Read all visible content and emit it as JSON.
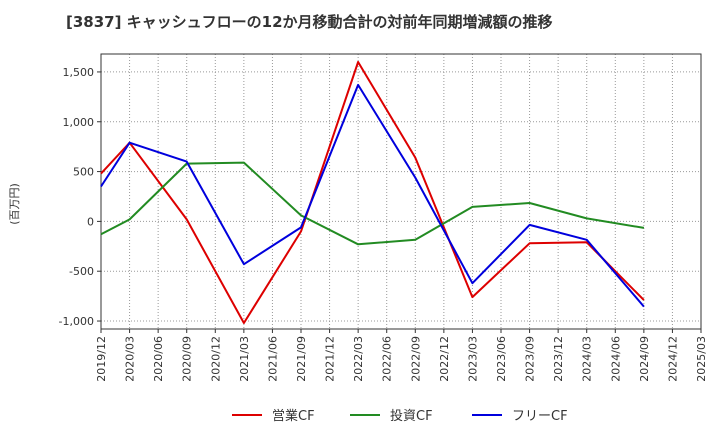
{
  "chart_data": {
    "type": "line",
    "title": "[3837]  キャッシュフローの12か月移動合計の対前年同期増減額の推移",
    "ylabel": "(百万円)",
    "xlabel": "",
    "categories": [
      "2019/12",
      "2020/03",
      "2020/06",
      "2020/09",
      "2020/12",
      "2021/03",
      "2021/06",
      "2021/09",
      "2021/12",
      "2022/03",
      "2022/06",
      "2022/09",
      "2022/12",
      "2023/03",
      "2023/06",
      "2023/09",
      "2023/12",
      "2024/03",
      "2024/06",
      "2024/09",
      "2024/12",
      "2025/03"
    ],
    "y_ticks": [
      "1,500",
      "1,000",
      "500",
      "0",
      "-500",
      "-1,000"
    ],
    "y_tick_values": [
      1500,
      1000,
      500,
      0,
      -500,
      -1000
    ],
    "ylim": [
      -1080,
      1680
    ],
    "grid": true,
    "legend_position": "bottom",
    "series": [
      {
        "name": "営業CF",
        "color": "#dd0000",
        "values": [
          480,
          790,
          null,
          20,
          null,
          -1020,
          null,
          -100,
          null,
          1600,
          null,
          640,
          null,
          -760,
          null,
          -220,
          null,
          -210,
          null,
          -790,
          null,
          null
        ]
      },
      {
        "name": "投資CF",
        "color": "#228B22",
        "values": [
          -130,
          20,
          null,
          580,
          null,
          590,
          null,
          60,
          null,
          -230,
          null,
          -185,
          null,
          145,
          null,
          185,
          null,
          30,
          null,
          -65,
          null,
          null
        ]
      },
      {
        "name": "フリーCF",
        "color": "#0000dd",
        "values": [
          350,
          790,
          null,
          600,
          null,
          -430,
          null,
          -60,
          null,
          1370,
          null,
          440,
          null,
          -620,
          null,
          -35,
          null,
          -185,
          null,
          -855,
          null,
          null
        ]
      }
    ]
  }
}
